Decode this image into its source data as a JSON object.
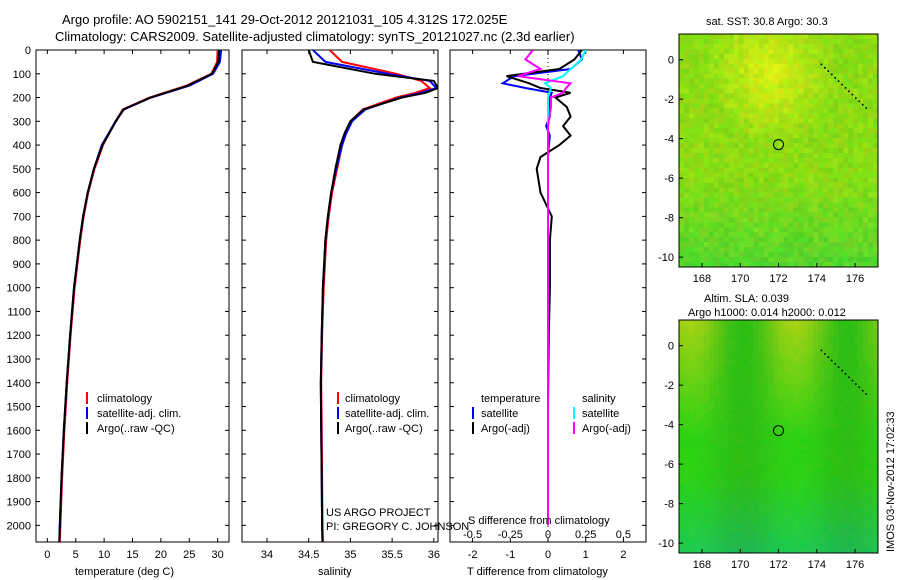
{
  "header": {
    "line1": "Argo profile: AO 5902151_141 29-Oct-2012 20121031_105 4.312S 172.025E",
    "line2": "Climatology: CARS2009. Satellite-adjusted climatology: synTS_20121027.nc (2.3d earlier)"
  },
  "colors": {
    "climatology": "#ff0000",
    "satellite": "#0000ff",
    "argo": "#000000",
    "sat_salinity": "#00ffff",
    "argo_salinity_diff": "#ff00ff"
  },
  "chart_data": [
    {
      "type": "line",
      "title": "",
      "xlabel": "temperature (deg C)",
      "ylabel": "",
      "xlim": [
        -2,
        32
      ],
      "ylim": [
        2070,
        0
      ],
      "xticks": [
        "0",
        "5",
        "10",
        "15",
        "20",
        "25",
        "30"
      ],
      "yticks": [
        "0",
        "100",
        "200",
        "300",
        "400",
        "500",
        "600",
        "700",
        "800",
        "900",
        "1000",
        "1100",
        "1200",
        "1300",
        "1400",
        "1500",
        "1600",
        "1700",
        "1800",
        "1900",
        "2000"
      ],
      "depth": [
        0,
        50,
        100,
        150,
        200,
        250,
        300,
        350,
        400,
        500,
        600,
        700,
        800,
        900,
        1000,
        1200,
        1400,
        1600,
        1800,
        2000,
        2070
      ],
      "series": [
        {
          "name": "climatology",
          "values": [
            30.0,
            29.9,
            28.9,
            24.5,
            18.0,
            13.3,
            12.0,
            10.9,
            9.8,
            8.3,
            7.2,
            6.4,
            5.8,
            5.3,
            4.8,
            4.1,
            3.5,
            3.0,
            2.6,
            2.3,
            2.2
          ]
        },
        {
          "name": "satellite-adj. clim.",
          "values": [
            30.6,
            30.4,
            29.2,
            25.0,
            18.3,
            13.5,
            12.0,
            10.8,
            9.6,
            8.2,
            7.1,
            6.3,
            5.7,
            5.2,
            4.7,
            4.0,
            3.4,
            2.9,
            2.5,
            2.2,
            2.1
          ]
        },
        {
          "name": "Argo(..raw -QC)",
          "values": [
            30.3,
            30.1,
            29.0,
            24.7,
            18.2,
            13.4,
            12.1,
            10.9,
            9.7,
            8.2,
            7.1,
            6.3,
            5.7,
            5.2,
            4.7,
            4.0,
            3.4,
            2.9,
            2.5,
            2.2,
            2.1
          ]
        }
      ],
      "legend": [
        "climatology",
        "satellite-adj. clim.",
        "Argo(..raw -QC)"
      ]
    },
    {
      "type": "line",
      "title": "",
      "xlabel": "salinity",
      "xlim": [
        33.7,
        36.05
      ],
      "ylim": [
        2070,
        0
      ],
      "xticks": [
        "34",
        "34.5",
        "35",
        "35.5",
        "36"
      ],
      "depth": [
        0,
        50,
        100,
        130,
        160,
        180,
        200,
        250,
        300,
        350,
        400,
        500,
        600,
        700,
        800,
        1000,
        1200,
        1400,
        1600,
        1800,
        2000,
        2070
      ],
      "series": [
        {
          "name": "climatology",
          "values": [
            34.75,
            34.9,
            35.55,
            35.85,
            35.95,
            35.78,
            35.55,
            35.15,
            35.0,
            34.94,
            34.9,
            34.84,
            34.78,
            34.74,
            34.71,
            34.68,
            34.66,
            34.65,
            34.655,
            34.66,
            34.665,
            34.67
          ]
        },
        {
          "name": "satellite-adj. clim.",
          "values": [
            34.55,
            34.7,
            35.45,
            35.95,
            36.03,
            35.85,
            35.6,
            35.18,
            35.02,
            34.95,
            34.9,
            34.83,
            34.77,
            34.73,
            34.7,
            34.67,
            34.655,
            34.645,
            34.65,
            34.655,
            34.66,
            34.665
          ]
        },
        {
          "name": "Argo(..raw -QC)",
          "values": [
            34.5,
            34.55,
            35.3,
            36.0,
            36.05,
            35.9,
            35.62,
            35.16,
            35.0,
            34.93,
            34.88,
            34.82,
            34.77,
            34.73,
            34.7,
            34.67,
            34.655,
            34.645,
            34.65,
            34.655,
            34.66,
            34.665
          ]
        }
      ],
      "legend": [
        "climatology",
        "satellite-adj. clim.",
        "Argo(..raw -QC)"
      ],
      "annotations": [
        "US ARGO PROJECT",
        "PI: GREGORY C. JOHNSON"
      ]
    },
    {
      "type": "line",
      "title": "",
      "xlabel": "T difference from climatology",
      "xlabel_top": "S difference from climatology",
      "xlim": [
        -2.6,
        2.6
      ],
      "ylim": [
        2070,
        0
      ],
      "xticks": [
        "-2",
        "-1",
        "0",
        "1",
        "2"
      ],
      "xticks_top": [
        "-0.5",
        "-0.25",
        "0",
        "0.25",
        "0.5"
      ],
      "depth": [
        0,
        40,
        80,
        110,
        140,
        160,
        180,
        200,
        240,
        280,
        320,
        360,
        400,
        450,
        500,
        600,
        700,
        800,
        1000,
        1200,
        1500,
        1800,
        2000
      ],
      "series": [
        {
          "name": "temperature satellite",
          "values": [
            0.8,
            0.9,
            0.6,
            -0.9,
            -1.2,
            -0.6,
            0.1,
            0.05,
            0.02,
            0.05,
            -0.05,
            0.05,
            0.02,
            0.0,
            0.0,
            0.0,
            0.0,
            0.0,
            0.0,
            0.0,
            0.0,
            0.0,
            0.0
          ]
        },
        {
          "name": "temperature Argo(-adj)",
          "values": [
            0.9,
            0.7,
            0.3,
            -1.1,
            -0.5,
            -0.2,
            0.6,
            0.2,
            0.5,
            0.6,
            0.4,
            0.6,
            0.3,
            -0.2,
            -0.3,
            -0.2,
            0.1,
            0.05,
            0.05,
            0.02,
            0.0,
            0.0,
            0.0
          ]
        },
        {
          "name": "salinity satellite",
          "values": [
            0.25,
            0.22,
            0.15,
            0.1,
            -0.02,
            0.02,
            0.01,
            0.0,
            0.0,
            0.0,
            0.0,
            0.0,
            0.0,
            0.0,
            0.0,
            0.0,
            0.0,
            0.0,
            0.0,
            0.0,
            0.0,
            0.0,
            0.0
          ]
        },
        {
          "name": "salinity Argo(-adj)",
          "values": [
            -0.1,
            -0.15,
            -0.05,
            -0.2,
            0.15,
            0.12,
            0.1,
            0.02,
            0.02,
            0.01,
            0.0,
            0.0,
            0.0,
            0.0,
            0.0,
            0.0,
            0.0,
            0.0,
            0.0,
            0.0,
            0.0,
            0.0,
            0.0
          ]
        }
      ],
      "legend_headers": [
        "temperature",
        "salinity"
      ],
      "legend": [
        "satellite",
        "Argo(-adj)",
        "satellite",
        "Argo(-adj)"
      ]
    },
    {
      "type": "heatmap",
      "title": "sat. SST: 30.8 Argo: 30.3",
      "xticks": [
        "168",
        "170",
        "172",
        "174",
        "176"
      ],
      "yticks": [
        "0",
        "-2",
        "-4",
        "-6",
        "-8",
        "-10"
      ],
      "xlim": [
        166.8,
        177.2
      ],
      "ylim": [
        -10.5,
        1.3
      ],
      "marker": {
        "lon": 172.0,
        "lat": -4.3
      }
    },
    {
      "type": "heatmap",
      "title_lines": [
        "Altim. SLA: 0.039",
        "Argo h1000: 0.014 h2000: 0.012"
      ],
      "xticks": [
        "168",
        "170",
        "172",
        "174",
        "176"
      ],
      "yticks": [
        "0",
        "-2",
        "-4",
        "-6",
        "-8",
        "-10"
      ],
      "xlim": [
        166.8,
        177.2
      ],
      "ylim": [
        -10.5,
        1.3
      ],
      "marker": {
        "lon": 172.0,
        "lat": -4.3
      }
    }
  ],
  "side_stamp": "IMOS 03-Nov-2012 17:02:33"
}
